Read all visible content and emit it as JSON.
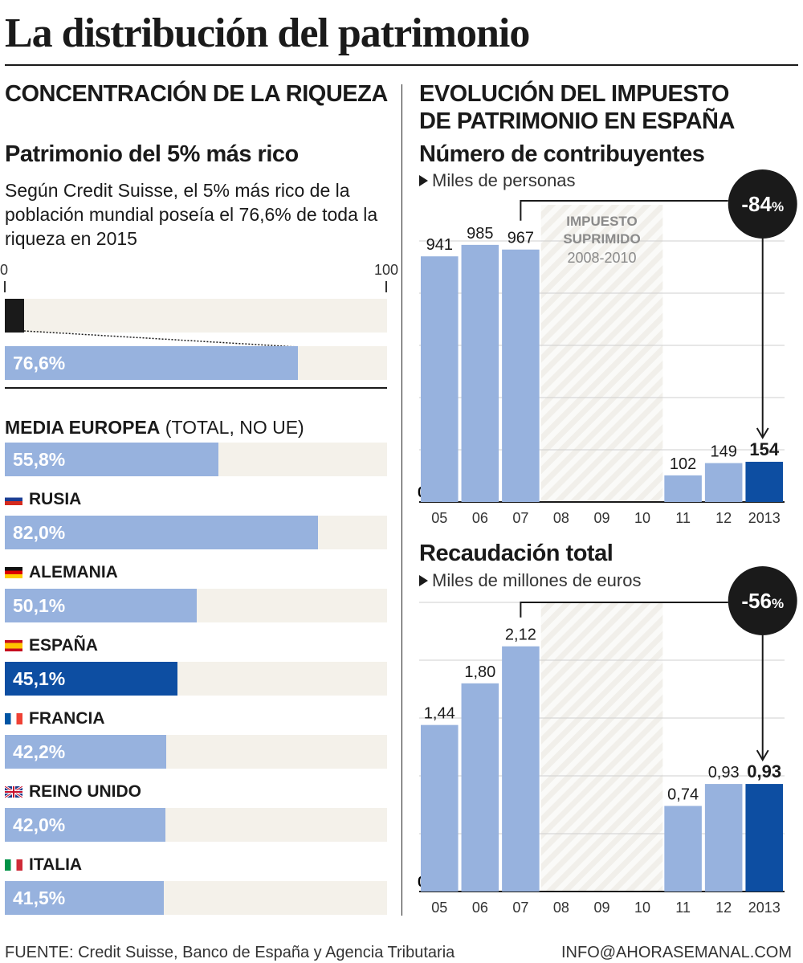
{
  "title": "La distribución del patrimonio",
  "left": {
    "heading": "CONCENTRACIÓN DE LA RIQUEZA",
    "subheading": "Patrimonio del 5% más rico",
    "intro": "Según Credit Suisse, el 5% más rico de la población mundial poseía el 76,6% de toda la riqueza en 2015",
    "scale_min": "0",
    "scale_max": "100",
    "world_value": 76.6,
    "world_label": "76,6%",
    "top_share": 5,
    "europe": {
      "label_bold": "MEDIA EUROPEA",
      "label_normal": " (TOTAL, NO UE)",
      "value": 55.8,
      "value_label": "55,8%"
    },
    "countries": [
      {
        "name": "RUSIA",
        "value": 82.0,
        "value_label": "82,0%",
        "flag": "russia-flag-icon",
        "highlight": false
      },
      {
        "name": "ALEMANIA",
        "value": 50.1,
        "value_label": "50,1%",
        "flag": "germany-flag-icon",
        "highlight": false
      },
      {
        "name": "ESPAÑA",
        "value": 45.1,
        "value_label": "45,1%",
        "flag": "spain-flag-icon",
        "highlight": true
      },
      {
        "name": "FRANCIA",
        "value": 42.2,
        "value_label": "42,2%",
        "flag": "france-flag-icon",
        "highlight": false
      },
      {
        "name": "REINO UNIDO",
        "value": 42.0,
        "value_label": "42,0%",
        "flag": "uk-flag-icon",
        "highlight": false
      },
      {
        "name": "ITALIA",
        "value": 41.5,
        "value_label": "41,5%",
        "flag": "italy-flag-icon",
        "highlight": false
      }
    ]
  },
  "right": {
    "heading_line1": "EVOLUCIÓN DEL IMPUESTO",
    "heading_line2": "DE PATRIMONIO EN ESPAÑA"
  },
  "colors": {
    "bar_light": "#97b2de",
    "bar_dark": "#0d4ea2",
    "track": "#f4f1ea",
    "hatch": "#f1efea",
    "black": "#1a1a1a"
  },
  "chart_data": [
    {
      "type": "bar",
      "title": "Número de contribuyentes",
      "unit": "Miles de personas",
      "categories": [
        "05",
        "06",
        "07",
        "08",
        "09",
        "10",
        "11",
        "12",
        "2013"
      ],
      "values": [
        941,
        985,
        967,
        null,
        null,
        null,
        102,
        149,
        154
      ],
      "value_labels": [
        "941",
        "985",
        "967",
        "",
        "",
        "",
        "102",
        "149",
        "154"
      ],
      "highlight_category": "2013",
      "ylim": [
        0,
        1000
      ],
      "zero_label": "0",
      "annotation_title": "IMPUESTO SUPRIMIDO",
      "annotation_years": "2008-2010",
      "change_label": "-84",
      "change_unit": "%"
    },
    {
      "type": "bar",
      "title": "Recaudación total",
      "unit": "Miles de millones de euros",
      "categories": [
        "05",
        "06",
        "07",
        "08",
        "09",
        "10",
        "11",
        "12",
        "2013"
      ],
      "values": [
        1.44,
        1.8,
        2.12,
        null,
        null,
        null,
        0.74,
        0.93,
        0.93
      ],
      "value_labels": [
        "1,44",
        "1,80",
        "2,12",
        "",
        "",
        "",
        "0,74",
        "0,93",
        "0,93"
      ],
      "highlight_category": "2013",
      "ylim": [
        0,
        2.5
      ],
      "zero_label": "0",
      "change_label": "-56",
      "change_unit": "%"
    }
  ],
  "footer": {
    "source": "FUENTE: Credit Suisse, Banco de España y Agencia Tributaria",
    "contact": "INFO@AHORASEMANAL.COM"
  }
}
